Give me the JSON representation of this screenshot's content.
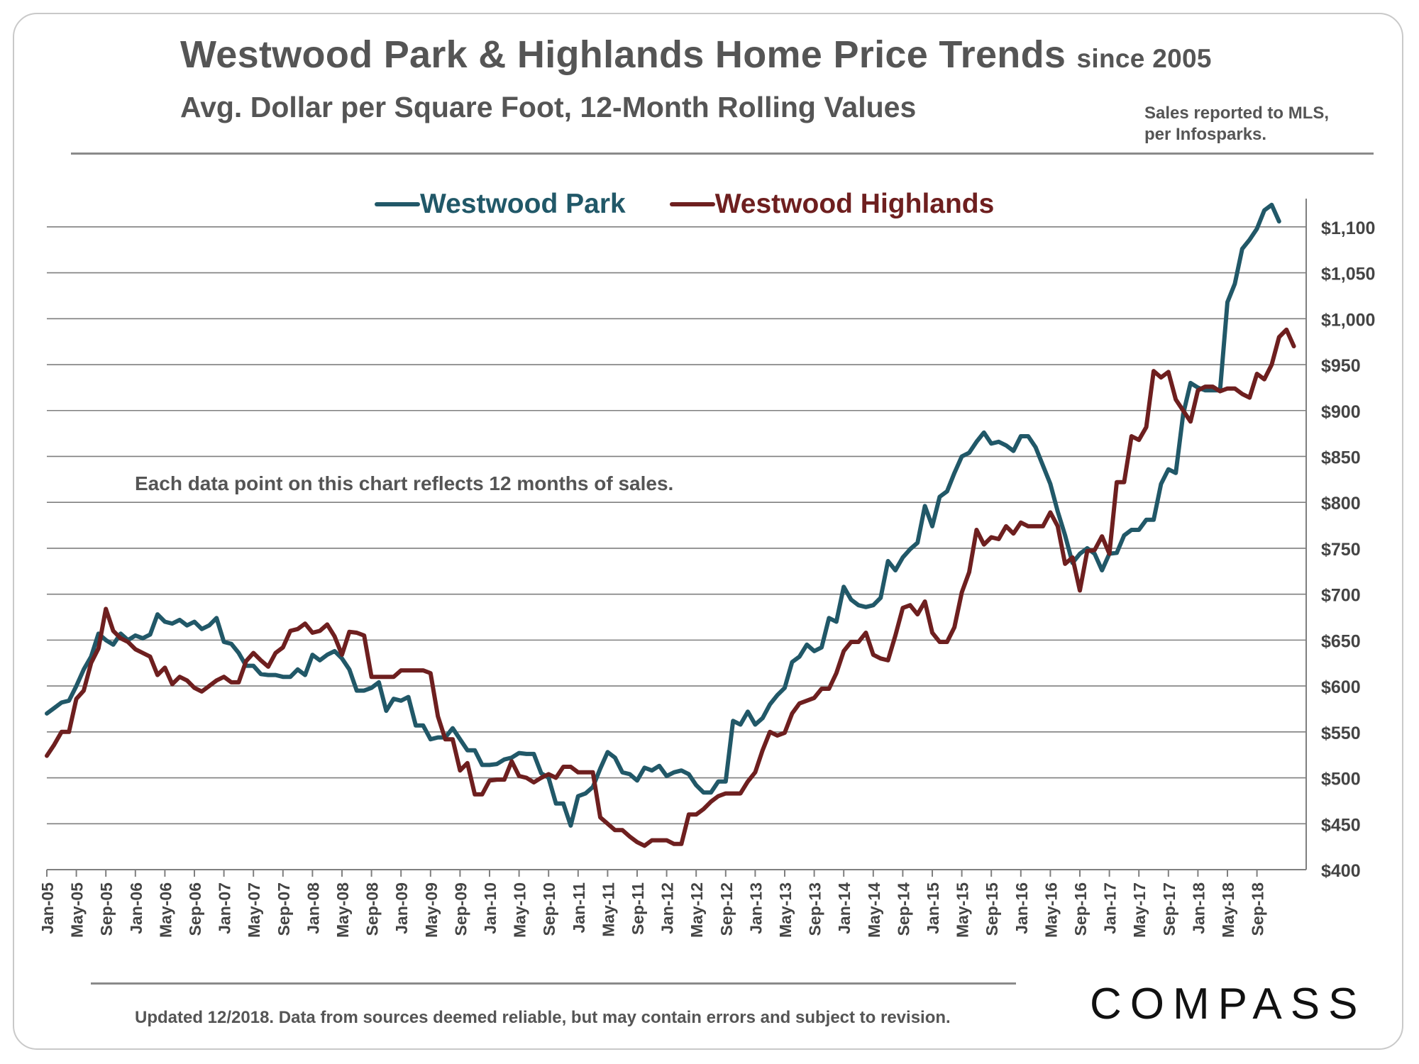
{
  "header": {
    "title": "Westwood Park & Highlands Home Price Trends",
    "title_suffix": "since 2005",
    "subtitle": "Avg. Dollar per Square Foot, 12-Month Rolling Values",
    "source_line1": "Sales reported to MLS,",
    "source_line2": "per Infosparks."
  },
  "note": "Each data point on this chart reflects 12 months of sales.",
  "footer": {
    "disclaimer": "Updated 12/2018. Data from sources deemed reliable, but may contain errors and subject to revision.",
    "brand": "COMPASS"
  },
  "colors": {
    "westwood_park": "#215868",
    "westwood_highlands": "#6e1f1f",
    "grid": "#7f7f7f",
    "text": "#555555"
  },
  "chart_data": {
    "type": "line",
    "title": "Westwood Park & Highlands Home Price Trends since 2005",
    "subtitle": "Avg. Dollar per Square Foot, 12-Month Rolling Values",
    "xlabel": "",
    "ylabel": "",
    "x_start": "Jan-05",
    "x_tick_labels": [
      "Jan-05",
      "May-05",
      "Sep-05",
      "Jan-06",
      "May-06",
      "Sep-06",
      "Jan-07",
      "May-07",
      "Sep-07",
      "Jan-08",
      "May-08",
      "Sep-08",
      "Jan-09",
      "May-09",
      "Sep-09",
      "Jan-10",
      "May-10",
      "Sep-10",
      "Jan-11",
      "May-11",
      "Sep-11",
      "Jan-12",
      "May-12",
      "Sep-12",
      "Jan-13",
      "May-13",
      "Sep-13",
      "Jan-14",
      "May-14",
      "Sep-14",
      "Jan-15",
      "May-15",
      "Sep-15",
      "Jan-16",
      "May-16",
      "Sep-16",
      "Jan-17",
      "May-17",
      "Sep-17",
      "Jan-18",
      "May-18",
      "Sep-18"
    ],
    "y_tick_labels": [
      "$400",
      "$450",
      "$500",
      "$550",
      "$600",
      "$650",
      "$700",
      "$750",
      "$800",
      "$850",
      "$900",
      "$950",
      "$1,000",
      "$1,050",
      "$1,100"
    ],
    "ylim": [
      400,
      1130
    ],
    "y_gridlines": [
      400,
      450,
      500,
      550,
      600,
      650,
      700,
      750,
      800,
      850,
      900,
      950,
      1000,
      1050,
      1100
    ],
    "grid": true,
    "legend_position": "top",
    "series": [
      {
        "name": "Westwood Park",
        "color": "#215868",
        "values": [
          570,
          576,
          582,
          584,
          600,
          618,
          632,
          657,
          650,
          645,
          657,
          650,
          655,
          652,
          656,
          678,
          670,
          668,
          672,
          666,
          670,
          662,
          666,
          674,
          648,
          646,
          636,
          622,
          622,
          613,
          612,
          612,
          610,
          610,
          618,
          612,
          634,
          628,
          634,
          638,
          630,
          618,
          595,
          595,
          598,
          604,
          573,
          586,
          584,
          588,
          557,
          557,
          542,
          544,
          544,
          554,
          542,
          530,
          530,
          514,
          514,
          515,
          520,
          522,
          527,
          526,
          526,
          505,
          500,
          472,
          472,
          448,
          480,
          483,
          490,
          510,
          528,
          522,
          506,
          504,
          497,
          511,
          508,
          513,
          502,
          506,
          508,
          504,
          492,
          484,
          484,
          496,
          496,
          562,
          558,
          572,
          558,
          565,
          580,
          590,
          598,
          626,
          632,
          645,
          638,
          642,
          674,
          670,
          708,
          694,
          688,
          686,
          688,
          696,
          736,
          726,
          740,
          749,
          756,
          796,
          774,
          806,
          812,
          832,
          850,
          854,
          866,
          876,
          864,
          866,
          862,
          856,
          872,
          872,
          860,
          840,
          820,
          790,
          764,
          734,
          744,
          750,
          744,
          726,
          744,
          745,
          764,
          770,
          770,
          781,
          781,
          820,
          836,
          832,
          896,
          930,
          925,
          922,
          922,
          922,
          1018,
          1038,
          1076,
          1086,
          1098,
          1118,
          1124,
          1106
        ]
      },
      {
        "name": "Westwood Highlands",
        "color": "#6e1f1f",
        "values": [
          524,
          536,
          550,
          550,
          586,
          595,
          625,
          641,
          684,
          660,
          652,
          648,
          640,
          636,
          632,
          612,
          620,
          602,
          610,
          606,
          598,
          594,
          600,
          606,
          610,
          604,
          604,
          627,
          636,
          628,
          621,
          636,
          642,
          660,
          662,
          668,
          658,
          660,
          667,
          654,
          634,
          659,
          658,
          655,
          610,
          610,
          610,
          610,
          617,
          617,
          617,
          617,
          614,
          567,
          542,
          542,
          508,
          516,
          482,
          482,
          497,
          498,
          498,
          518,
          502,
          500,
          495,
          500,
          504,
          500,
          512,
          512,
          506,
          506,
          506,
          457,
          450,
          443,
          443,
          436,
          430,
          426,
          432,
          432,
          432,
          428,
          428,
          460,
          460,
          466,
          474,
          480,
          483,
          483,
          483,
          496,
          506,
          530,
          550,
          546,
          549,
          570,
          581,
          584,
          587,
          597,
          597,
          614,
          638,
          648,
          648,
          658,
          634,
          630,
          628,
          655,
          685,
          688,
          678,
          692,
          658,
          648,
          648,
          664,
          702,
          724,
          770,
          754,
          762,
          760,
          774,
          766,
          778,
          774,
          774,
          774,
          789,
          774,
          733,
          740,
          704,
          747,
          748,
          763,
          744,
          822,
          822,
          872,
          868,
          882,
          943,
          936,
          942,
          912,
          900,
          888,
          922,
          926,
          926,
          921,
          924,
          924,
          918,
          914,
          940,
          934,
          950,
          980,
          988,
          970
        ]
      }
    ]
  }
}
